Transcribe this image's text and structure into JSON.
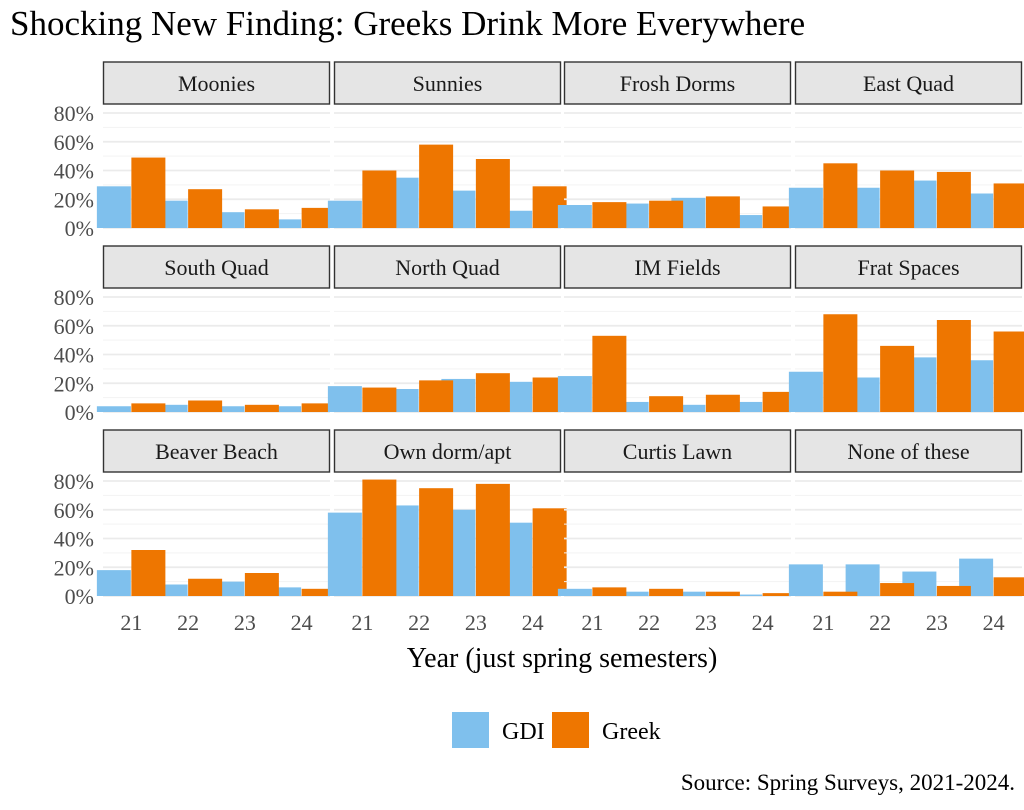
{
  "chart_data": {
    "type": "bar",
    "title": "Shocking New Finding: Greeks Drink More Everywhere",
    "xlabel": "Year (just spring semesters)",
    "ylabel": "",
    "caption": "Source: Spring Surveys, 2021-2024.",
    "ylim": [
      0,
      80
    ],
    "yticks": [
      "0%",
      "20%",
      "40%",
      "60%",
      "80%"
    ],
    "ytick_values": [
      0,
      20,
      40,
      60,
      80
    ],
    "categories": [
      "21",
      "22",
      "23",
      "24"
    ],
    "grid": true,
    "legend": {
      "position": "bottom",
      "entries": [
        {
          "name": "GDI",
          "color": "#7fc0ed"
        },
        {
          "name": "Greek",
          "color": "#ee7600"
        }
      ]
    },
    "facets": [
      {
        "name": "Moonies",
        "series": [
          {
            "name": "GDI",
            "values": [
              29,
              19,
              11,
              6
            ]
          },
          {
            "name": "Greek",
            "values": [
              49,
              27,
              13,
              14
            ]
          }
        ]
      },
      {
        "name": "Sunnies",
        "series": [
          {
            "name": "GDI",
            "values": [
              19,
              35,
              26,
              12
            ]
          },
          {
            "name": "Greek",
            "values": [
              40,
              58,
              48,
              29
            ]
          }
        ]
      },
      {
        "name": "Frosh Dorms",
        "series": [
          {
            "name": "GDI",
            "values": [
              16,
              17,
              21,
              9
            ]
          },
          {
            "name": "Greek",
            "values": [
              18,
              19,
              22,
              15
            ]
          }
        ]
      },
      {
        "name": "East Quad",
        "series": [
          {
            "name": "GDI",
            "values": [
              28,
              28,
              33,
              24
            ]
          },
          {
            "name": "Greek",
            "values": [
              45,
              40,
              39,
              31
            ]
          }
        ]
      },
      {
        "name": "South Quad",
        "series": [
          {
            "name": "GDI",
            "values": [
              4,
              5,
              4,
              4
            ]
          },
          {
            "name": "Greek",
            "values": [
              6,
              8,
              5,
              6
            ]
          }
        ]
      },
      {
        "name": "North Quad",
        "series": [
          {
            "name": "GDI",
            "values": [
              18,
              16,
              23,
              21
            ]
          },
          {
            "name": "Greek",
            "values": [
              17,
              22,
              27,
              24
            ]
          }
        ]
      },
      {
        "name": "IM Fields",
        "series": [
          {
            "name": "GDI",
            "values": [
              25,
              7,
              5,
              7
            ]
          },
          {
            "name": "Greek",
            "values": [
              53,
              11,
              12,
              14
            ]
          }
        ]
      },
      {
        "name": "Frat Spaces",
        "series": [
          {
            "name": "GDI",
            "values": [
              28,
              24,
              38,
              36
            ]
          },
          {
            "name": "Greek",
            "values": [
              68,
              46,
              64,
              56
            ]
          }
        ]
      },
      {
        "name": "Beaver Beach",
        "series": [
          {
            "name": "GDI",
            "values": [
              18,
              8,
              10,
              6
            ]
          },
          {
            "name": "Greek",
            "values": [
              32,
              12,
              16,
              5
            ]
          }
        ]
      },
      {
        "name": "Own dorm/apt",
        "series": [
          {
            "name": "GDI",
            "values": [
              58,
              63,
              60,
              51
            ]
          },
          {
            "name": "Greek",
            "values": [
              81,
              75,
              78,
              61
            ]
          }
        ]
      },
      {
        "name": "Curtis Lawn",
        "series": [
          {
            "name": "GDI",
            "values": [
              5,
              3,
              3,
              1
            ]
          },
          {
            "name": "Greek",
            "values": [
              6,
              5,
              3,
              2
            ]
          }
        ]
      },
      {
        "name": "None of these",
        "series": [
          {
            "name": "GDI",
            "values": [
              22,
              22,
              17,
              26
            ]
          },
          {
            "name": "Greek",
            "values": [
              3,
              9,
              7,
              13
            ]
          }
        ]
      }
    ]
  }
}
